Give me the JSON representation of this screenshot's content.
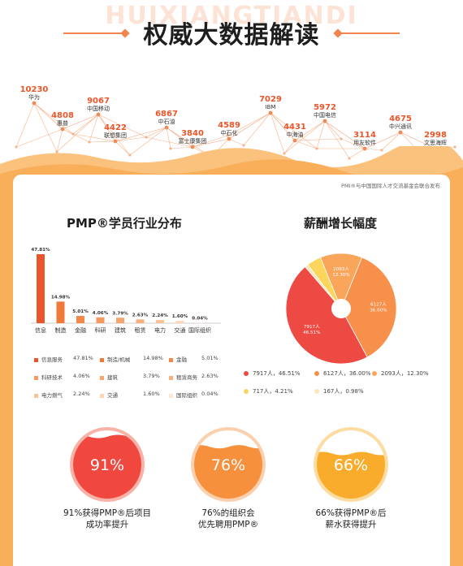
{
  "header": {
    "watermark": "HUIXIANGTIANDI",
    "title": "权威大数据解读"
  },
  "companies": [
    {
      "value": "10230",
      "name": "华为"
    },
    {
      "value": "4808",
      "name": "惠普"
    },
    {
      "value": "9067",
      "name": "中国移动"
    },
    {
      "value": "4422",
      "name": "联想集团"
    },
    {
      "value": "6867",
      "name": "中石油"
    },
    {
      "value": "3840",
      "name": "富士康集团"
    },
    {
      "value": "4589",
      "name": "中石化"
    },
    {
      "value": "7029",
      "name": "IBM"
    },
    {
      "value": "4431",
      "name": "中海油"
    },
    {
      "value": "5972",
      "name": "中国电信"
    },
    {
      "value": "3114",
      "name": "用友软件"
    },
    {
      "value": "4675",
      "name": "中兴通讯"
    },
    {
      "value": "2998",
      "name": "文思海辉"
    }
  ],
  "note": "PMI®与中国国际人才交流基金会联合发布",
  "industry": {
    "title": "PMP®学员行业分布"
  },
  "salary": {
    "title": "薪酬增长幅度"
  },
  "chart_data": [
    {
      "type": "bar",
      "title": "PMP®学员行业分布",
      "categories": [
        "信息",
        "制造",
        "金融",
        "科研",
        "建筑",
        "租赁",
        "电力",
        "交通",
        "国际组织"
      ],
      "values": [
        47.81,
        14.98,
        5.01,
        4.06,
        3.79,
        2.63,
        2.24,
        1.6,
        0.04
      ],
      "value_labels": [
        "47.81%",
        "14.98%",
        "5.01%",
        "4.06%",
        "3.79%",
        "2.63%",
        "2.24%",
        "1.60%",
        "0.04%"
      ],
      "colors": [
        "#e8562a",
        "#f07838",
        "#f2884a",
        "#f49a5e",
        "#f5a66c",
        "#f7b07c",
        "#f9c394",
        "#fbd6b4",
        "#fde6d4"
      ],
      "legend": [
        {
          "name": "信息服务",
          "pct": "47.81%"
        },
        {
          "name": "制造/机械",
          "pct": "14.98%"
        },
        {
          "name": "金融",
          "pct": "5.01%"
        },
        {
          "name": "科研技术",
          "pct": "4.06%"
        },
        {
          "name": "建筑",
          "pct": "3.79%"
        },
        {
          "name": "租赁商务",
          "pct": "2.63%"
        },
        {
          "name": "电力燃气",
          "pct": "2.24%"
        },
        {
          "name": "交通",
          "pct": "1.60%"
        },
        {
          "name": "国际组织",
          "pct": "0.04%"
        }
      ]
    },
    {
      "type": "pie",
      "title": "薪酬增长幅度",
      "slices": [
        {
          "value": 46.51,
          "color": "#ee4a44",
          "label": "7917人，46.51%",
          "inner1": "7917人",
          "inner2": "46.51%"
        },
        {
          "value": 36.0,
          "color": "#f7904a",
          "label": "6127人，36.00%",
          "inner1": "6127人",
          "inner2": "36.00%"
        },
        {
          "value": 12.3,
          "color": "#f9a65a",
          "label": "2093人，12.30%",
          "inner1": "2093人",
          "inner2": "12.30%"
        },
        {
          "value": 4.21,
          "color": "#fbd55c",
          "label": "717人，4.21%",
          "inner1": "",
          "inner2": ""
        },
        {
          "value": 0.98,
          "color": "#fde6ba",
          "label": "167人，0.98%",
          "inner1": "",
          "inner2": ""
        }
      ]
    },
    {
      "type": "gauge",
      "items": [
        {
          "value": 91,
          "display": "91%",
          "line1": "91%获得PMP®后项目",
          "line2": "成功率提升",
          "color": "#f0483e",
          "light": "#f9b2a8"
        },
        {
          "value": 76,
          "display": "76%",
          "line1": "76%的组织会",
          "line2": "优先聘用PMP®",
          "color": "#f7903c",
          "light": "#fbd0ae"
        },
        {
          "value": 66,
          "display": "66%",
          "line1": "66%获得PMP®后",
          "line2": "薪水获得提升",
          "color": "#f9ac2c",
          "light": "#fcdca0"
        }
      ]
    }
  ]
}
